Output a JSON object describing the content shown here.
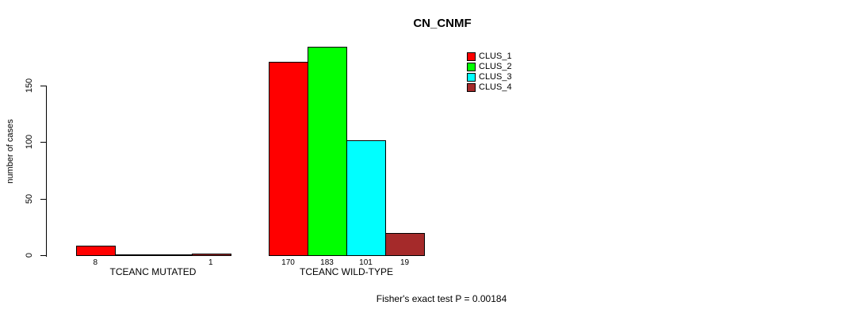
{
  "chart_data": {
    "type": "bar",
    "title": "CN_CNMF",
    "ylabel": "number of cases",
    "ylim": [
      0,
      150
    ],
    "yticks": [
      0,
      50,
      100,
      150
    ],
    "grid": false,
    "legend_position": "top-right",
    "categories": [
      "TCEANC MUTATED",
      "TCEANC WILD-TYPE"
    ],
    "series": [
      {
        "name": "CLUS_1",
        "color": "#ff0000",
        "values": [
          8,
          170
        ]
      },
      {
        "name": "CLUS_2",
        "color": "#00ff00",
        "values": [
          0,
          183
        ]
      },
      {
        "name": "CLUS_3",
        "color": "#00ffff",
        "values": [
          0,
          101
        ]
      },
      {
        "name": "CLUS_4",
        "color": "#a52a2a",
        "values": [
          1,
          19
        ]
      }
    ],
    "bar_value_labels": [
      [
        "8",
        "",
        "",
        "1"
      ],
      [
        "170",
        "183",
        "101",
        "19"
      ]
    ],
    "annotation": "Fisher's exact test P = 0.00184"
  }
}
